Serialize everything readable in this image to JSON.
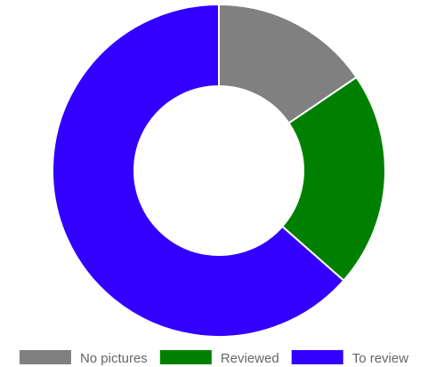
{
  "chart_data": {
    "type": "doughnut",
    "title": "",
    "legend_position": "bottom",
    "categories": [
      "No pictures",
      "Reviewed",
      "To review"
    ],
    "values": [
      15.5,
      21,
      63.5
    ],
    "colors": [
      "#808080",
      "#008000",
      "#3300ff"
    ],
    "slice_border_color": "#ffffff",
    "start_angle_deg": 0,
    "direction": "clockwise"
  }
}
